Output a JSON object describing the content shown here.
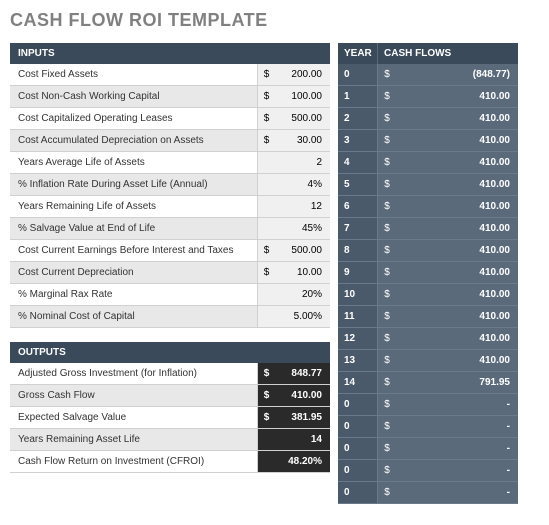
{
  "title": "CASH FLOW ROI TEMPLATE",
  "inputs": {
    "header": "INPUTS",
    "rows": [
      {
        "label": "Cost Fixed Assets",
        "dollar": "$",
        "value": "200.00"
      },
      {
        "label": "Cost Non-Cash Working Capital",
        "dollar": "$",
        "value": "100.00"
      },
      {
        "label": "Cost Capitalized Operating Leases",
        "dollar": "$",
        "value": "500.00"
      },
      {
        "label": "Cost Accumulated Depreciation on Assets",
        "dollar": "$",
        "value": "30.00"
      },
      {
        "label": "Years Average Life of Assets",
        "dollar": "",
        "value": "2"
      },
      {
        "label": "% Inflation Rate During Asset Life (Annual)",
        "dollar": "",
        "value": "4%"
      },
      {
        "label": "Years Remaining Life of Assets",
        "dollar": "",
        "value": "12"
      },
      {
        "label": "% Salvage Value at End of Life",
        "dollar": "",
        "value": "45%"
      },
      {
        "label": "Cost Current Earnings Before Interest and Taxes",
        "dollar": "$",
        "value": "500.00"
      },
      {
        "label": "Cost Current Depreciation",
        "dollar": "$",
        "value": "10.00"
      },
      {
        "label": "% Marginal Rax Rate",
        "dollar": "",
        "value": "20%"
      },
      {
        "label": "% Nominal Cost of Capital",
        "dollar": "",
        "value": "5.00%"
      }
    ]
  },
  "outputs": {
    "header": "OUTPUTS",
    "rows": [
      {
        "label": "Adjusted Gross Investment (for Inflation)",
        "dollar": "$",
        "value": "848.77"
      },
      {
        "label": "Gross Cash Flow",
        "dollar": "$",
        "value": "410.00"
      },
      {
        "label": "Expected Salvage Value",
        "dollar": "$",
        "value": "381.95"
      },
      {
        "label": "Years Remaining Asset Life",
        "dollar": "",
        "value": "14"
      },
      {
        "label": "Cash Flow Return on Investment (CFROI)",
        "dollar": "",
        "value": "48.20%"
      }
    ]
  },
  "cashflows": {
    "year_header": "YEAR",
    "flow_header": "CASH FLOWS",
    "rows": [
      {
        "year": "0",
        "dollar": "$",
        "amount": "(848.77)"
      },
      {
        "year": "1",
        "dollar": "$",
        "amount": "410.00"
      },
      {
        "year": "2",
        "dollar": "$",
        "amount": "410.00"
      },
      {
        "year": "3",
        "dollar": "$",
        "amount": "410.00"
      },
      {
        "year": "4",
        "dollar": "$",
        "amount": "410.00"
      },
      {
        "year": "5",
        "dollar": "$",
        "amount": "410.00"
      },
      {
        "year": "6",
        "dollar": "$",
        "amount": "410.00"
      },
      {
        "year": "7",
        "dollar": "$",
        "amount": "410.00"
      },
      {
        "year": "8",
        "dollar": "$",
        "amount": "410.00"
      },
      {
        "year": "9",
        "dollar": "$",
        "amount": "410.00"
      },
      {
        "year": "10",
        "dollar": "$",
        "amount": "410.00"
      },
      {
        "year": "11",
        "dollar": "$",
        "amount": "410.00"
      },
      {
        "year": "12",
        "dollar": "$",
        "amount": "410.00"
      },
      {
        "year": "13",
        "dollar": "$",
        "amount": "410.00"
      },
      {
        "year": "14",
        "dollar": "$",
        "amount": "791.95"
      },
      {
        "year": "0",
        "dollar": "$",
        "amount": "-"
      },
      {
        "year": "0",
        "dollar": "$",
        "amount": "-"
      },
      {
        "year": "0",
        "dollar": "$",
        "amount": "-"
      },
      {
        "year": "0",
        "dollar": "$",
        "amount": "-"
      },
      {
        "year": "0",
        "dollar": "$",
        "amount": "-"
      }
    ]
  }
}
